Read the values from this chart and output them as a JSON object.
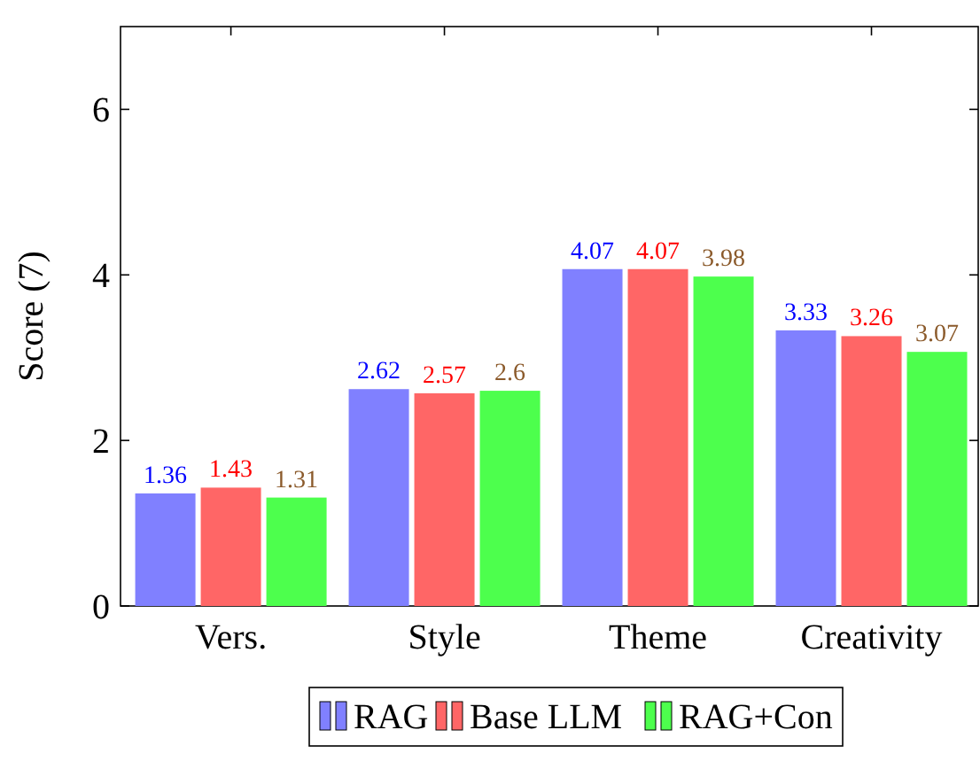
{
  "chart_data": {
    "type": "bar",
    "ylabel": "Score (7)",
    "categories": [
      "Vers.",
      "Style",
      "Theme",
      "Creativity"
    ],
    "series": [
      {
        "name": "RAG",
        "color": "#8080ff",
        "values": [
          1.36,
          2.62,
          4.07,
          3.33
        ]
      },
      {
        "name": "Base LLM",
        "color": "#ff6666",
        "values": [
          1.43,
          2.57,
          4.07,
          3.26
        ]
      },
      {
        "name": "RAG+Con",
        "color": "#4dff4d",
        "values": [
          1.31,
          2.6,
          3.98,
          3.07
        ]
      }
    ],
    "ylim": [
      0,
      7
    ],
    "yticks": [
      0,
      2,
      4,
      6
    ],
    "data_labels": true,
    "legend": "bottom",
    "grid": false
  }
}
